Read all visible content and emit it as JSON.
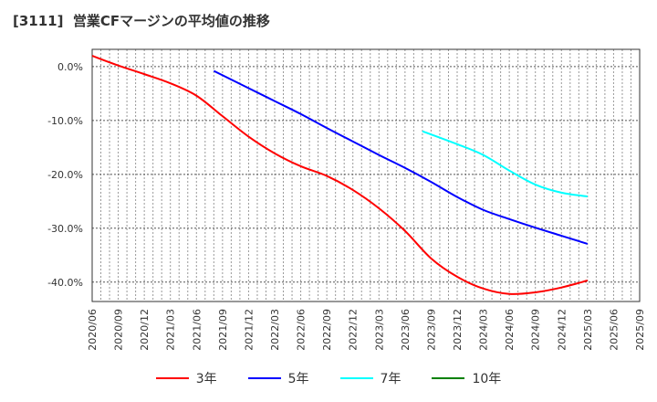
{
  "chart_data": {
    "type": "line",
    "title": "[3111]  営業CFマージンの平均値の推移",
    "xlabel": "",
    "ylabel": "",
    "ylim": [
      -43.6,
      3.2
    ],
    "x_range": [
      "2020/06",
      "2025/09"
    ],
    "grid": true,
    "yticks": [
      0,
      -10,
      -20,
      -30,
      -40
    ],
    "ytick_labels": [
      "0.0%",
      "-10.0%",
      "-20.0%",
      "-30.0%",
      "-40.0%"
    ],
    "xtick_labels": [
      "2020/06",
      "2020/09",
      "2020/12",
      "2021/03",
      "2021/06",
      "2021/09",
      "2021/12",
      "2022/03",
      "2022/06",
      "2022/09",
      "2022/12",
      "2023/03",
      "2023/06",
      "2023/09",
      "2023/12",
      "2024/03",
      "2024/06",
      "2024/09",
      "2024/12",
      "2025/03",
      "2025/06",
      "2025/09"
    ],
    "legend_position": "bottom",
    "series": [
      {
        "name": "3年",
        "color": "#ff0000",
        "points": [
          [
            "2020/06",
            2.0
          ],
          [
            "2020/09",
            0.2
          ],
          [
            "2020/12",
            -1.4
          ],
          [
            "2021/03",
            -3.1
          ],
          [
            "2021/06",
            -5.4
          ],
          [
            "2021/09",
            -9.2
          ],
          [
            "2021/12",
            -13.0
          ],
          [
            "2022/03",
            -16.1
          ],
          [
            "2022/06",
            -18.5
          ],
          [
            "2022/09",
            -20.3
          ],
          [
            "2022/12",
            -22.9
          ],
          [
            "2023/03",
            -26.3
          ],
          [
            "2023/06",
            -30.5
          ],
          [
            "2023/09",
            -35.6
          ],
          [
            "2023/12",
            -39.0
          ],
          [
            "2024/03",
            -41.2
          ],
          [
            "2024/06",
            -42.2
          ],
          [
            "2024/09",
            -41.9
          ],
          [
            "2024/12",
            -41.0
          ],
          [
            "2025/03",
            -39.7
          ]
        ]
      },
      {
        "name": "5年",
        "color": "#0000ff",
        "points": [
          [
            "2021/08",
            -0.8
          ],
          [
            "2021/12",
            -4.0
          ],
          [
            "2022/03",
            -6.4
          ],
          [
            "2022/06",
            -8.8
          ],
          [
            "2022/09",
            -11.4
          ],
          [
            "2022/12",
            -13.9
          ],
          [
            "2023/03",
            -16.4
          ],
          [
            "2023/06",
            -18.8
          ],
          [
            "2023/09",
            -21.4
          ],
          [
            "2023/12",
            -24.2
          ],
          [
            "2024/03",
            -26.6
          ],
          [
            "2024/06",
            -28.3
          ],
          [
            "2024/09",
            -29.9
          ],
          [
            "2024/12",
            -31.4
          ],
          [
            "2025/03",
            -32.9
          ]
        ]
      },
      {
        "name": "7年",
        "color": "#00ffff",
        "points": [
          [
            "2023/08",
            -12.0
          ],
          [
            "2023/12",
            -14.4
          ],
          [
            "2024/03",
            -16.4
          ],
          [
            "2024/06",
            -19.3
          ],
          [
            "2024/09",
            -21.9
          ],
          [
            "2024/12",
            -23.4
          ],
          [
            "2025/03",
            -24.1
          ]
        ]
      },
      {
        "name": "10年",
        "color": "#008000",
        "points": []
      }
    ]
  }
}
